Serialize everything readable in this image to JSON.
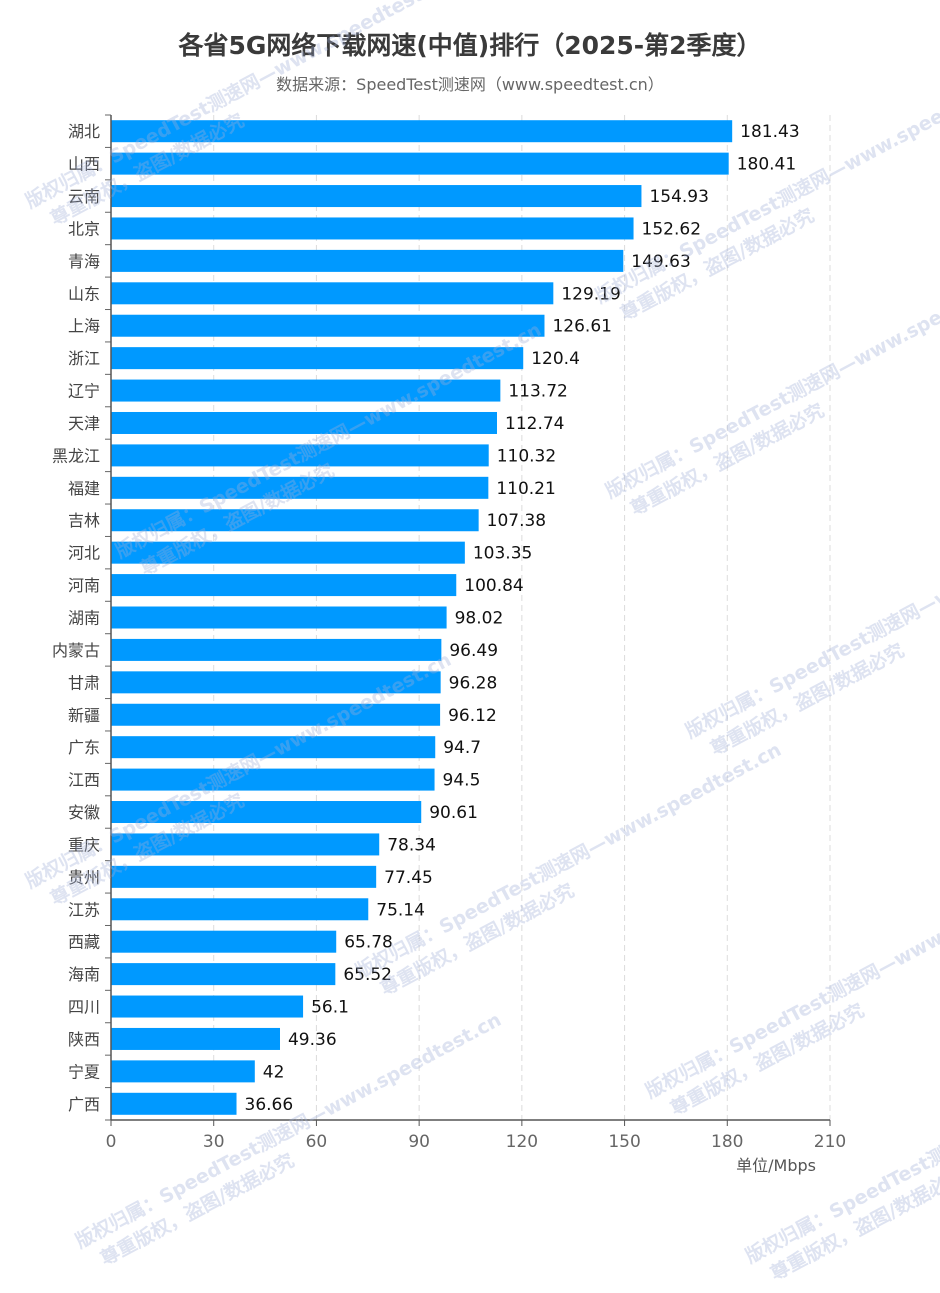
{
  "chart_data": {
    "type": "bar",
    "orientation": "horizontal",
    "title": "各省5G网络下载网速(中值)排行（2025-第2季度）",
    "subtitle": "数据来源：SpeedTest测速网（www.speedtest.cn）",
    "unit_label": "单位/Mbps",
    "xlim": [
      0,
      210
    ],
    "xticks": [
      0,
      30,
      60,
      90,
      120,
      150,
      180,
      210
    ],
    "grid": "vertical dashed",
    "bar_color": "#0099ff",
    "categories": [
      "湖北",
      "山西",
      "云南",
      "北京",
      "青海",
      "山东",
      "上海",
      "浙江",
      "辽宁",
      "天津",
      "黑龙江",
      "福建",
      "吉林",
      "河北",
      "河南",
      "湖南",
      "内蒙古",
      "甘肃",
      "新疆",
      "广东",
      "江西",
      "安徽",
      "重庆",
      "贵州",
      "江苏",
      "西藏",
      "海南",
      "四川",
      "陕西",
      "宁夏",
      "广西"
    ],
    "values": [
      181.43,
      180.41,
      154.93,
      152.62,
      149.63,
      129.19,
      126.61,
      120.4,
      113.72,
      112.74,
      110.32,
      110.21,
      107.38,
      103.35,
      100.84,
      98.02,
      96.49,
      96.28,
      96.12,
      94.7,
      94.5,
      90.61,
      78.34,
      77.45,
      75.14,
      65.78,
      65.52,
      56.1,
      49.36,
      42,
      36.66
    ]
  },
  "watermark": {
    "line1": "版权归属：SpeedTest测速网—www.speedtest.cn",
    "line2": "尊重版权，盗图/数据必究"
  }
}
